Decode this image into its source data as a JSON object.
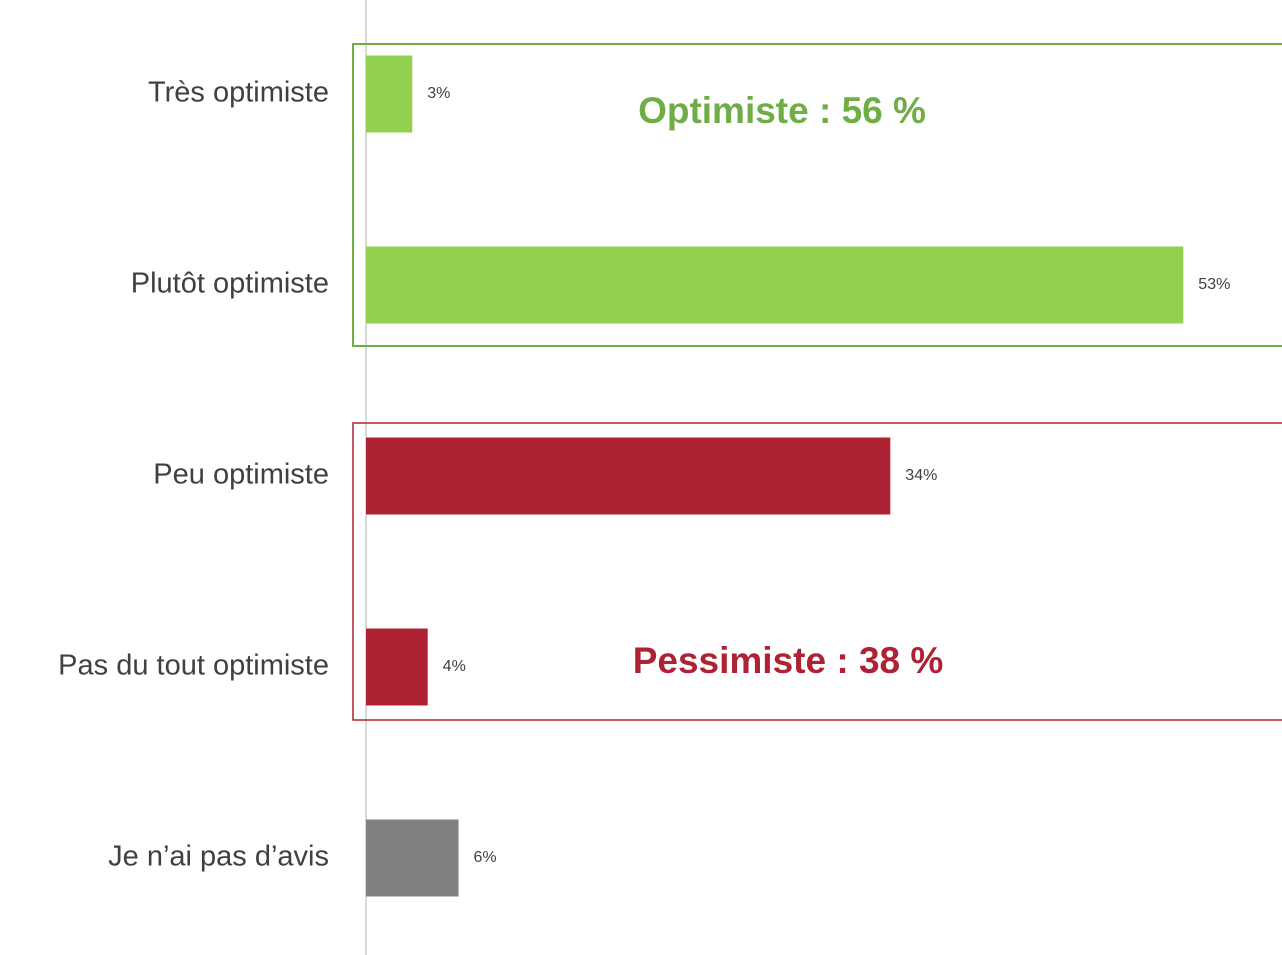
{
  "chart_data": {
    "type": "bar",
    "orientation": "horizontal",
    "categories": [
      "Très optimiste",
      "Plutôt optimiste",
      "Peu optimiste",
      "Pas du tout optimiste",
      "Je n’ai pas d’avis"
    ],
    "values": [
      3,
      53,
      34,
      4,
      6
    ],
    "value_labels": [
      "3%",
      "53%",
      "34%",
      "4%",
      "6%"
    ],
    "colors": [
      "#92d050",
      "#92d050",
      "#ae2334",
      "#ae2334",
      "#808080"
    ],
    "xlim": [
      0,
      59.4
    ],
    "annotations": [
      {
        "text": "Optimiste : 56 %",
        "color": "#70ad47"
      },
      {
        "text": "Pessimiste : 38 %",
        "color": "#ae2334"
      }
    ]
  }
}
